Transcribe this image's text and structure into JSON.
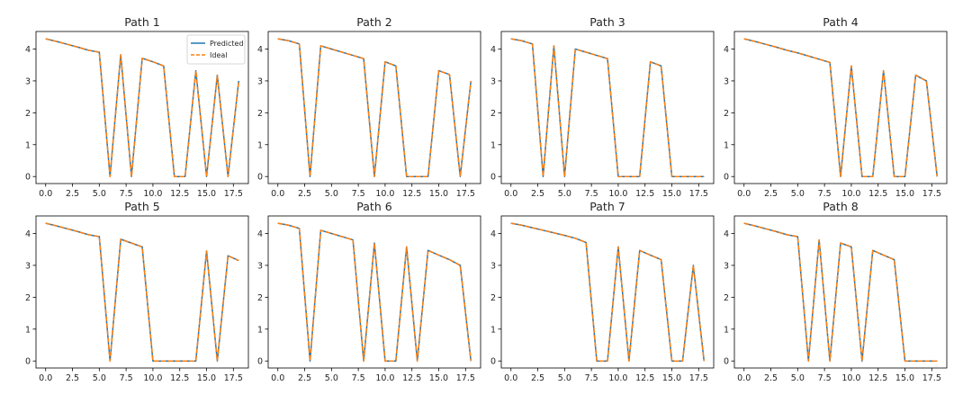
{
  "figure": {
    "background": "#ffffff"
  },
  "colors": {
    "predicted": "#1f77b4",
    "ideal": "#ff7f0e",
    "axis": "#000000",
    "text": "#262626"
  },
  "chart_data": [
    {
      "type": "line",
      "title": "Path 1",
      "xlim": [
        -0.9,
        18.9
      ],
      "ylim": [
        -0.22,
        4.55
      ],
      "xticks": [
        0,
        2.5,
        5,
        7.5,
        10,
        12.5,
        15,
        17.5
      ],
      "xtick_labels": [
        "0.0",
        "2.5",
        "5.0",
        "7.5",
        "10.0",
        "12.5",
        "15.0",
        "17.5"
      ],
      "yticks": [
        0,
        1,
        2,
        3,
        4
      ],
      "ytick_labels": [
        "0",
        "1",
        "2",
        "3",
        "4"
      ],
      "grid": false,
      "legend": {
        "location": "upper right",
        "entries": [
          "Predicted",
          "Ideal"
        ]
      },
      "x": [
        0,
        1,
        2,
        3,
        4,
        5,
        6,
        7,
        8,
        9,
        10,
        11,
        12,
        13,
        14,
        15,
        16,
        17,
        18
      ],
      "series": [
        {
          "name": "Predicted",
          "style": "solid",
          "color": "#1f77b4",
          "values": [
            4.32,
            4.24,
            4.15,
            4.06,
            3.96,
            3.9,
            0,
            3.82,
            0,
            3.71,
            3.6,
            3.47,
            0,
            0,
            3.32,
            0,
            3.18,
            0,
            3.0
          ]
        },
        {
          "name": "Ideal",
          "style": "dashed",
          "color": "#ff7f0e",
          "values": [
            4.32,
            4.24,
            4.15,
            4.06,
            3.96,
            3.9,
            0,
            3.82,
            0,
            3.71,
            3.6,
            3.47,
            0,
            0,
            3.32,
            0,
            3.18,
            0,
            3.0
          ]
        }
      ]
    },
    {
      "type": "line",
      "title": "Path 2",
      "xlim": [
        -0.9,
        18.9
      ],
      "ylim": [
        -0.22,
        4.55
      ],
      "xticks": [
        0,
        2.5,
        5,
        7.5,
        10,
        12.5,
        15,
        17.5
      ],
      "xtick_labels": [
        "0.0",
        "2.5",
        "5.0",
        "7.5",
        "10.0",
        "12.5",
        "15.0",
        "17.5"
      ],
      "yticks": [
        0,
        1,
        2,
        3,
        4
      ],
      "ytick_labels": [
        "0",
        "1",
        "2",
        "3",
        "4"
      ],
      "grid": false,
      "x": [
        0,
        1,
        2,
        3,
        4,
        5,
        6,
        7,
        8,
        9,
        10,
        11,
        12,
        13,
        14,
        15,
        16,
        17,
        18
      ],
      "series": [
        {
          "style": "solid",
          "color": "#1f77b4",
          "values": [
            4.32,
            4.26,
            4.16,
            0,
            4.1,
            4.0,
            3.9,
            3.8,
            3.7,
            0,
            3.6,
            3.47,
            0,
            0,
            0,
            3.32,
            3.2,
            0,
            3.0
          ]
        },
        {
          "style": "dashed",
          "color": "#ff7f0e",
          "values": [
            4.32,
            4.26,
            4.16,
            0,
            4.1,
            4.0,
            3.9,
            3.8,
            3.7,
            0,
            3.6,
            3.47,
            0,
            0,
            0,
            3.32,
            3.2,
            0,
            3.0
          ]
        }
      ]
    },
    {
      "type": "line",
      "title": "Path 3",
      "xlim": [
        -0.9,
        18.9
      ],
      "ylim": [
        -0.22,
        4.55
      ],
      "xticks": [
        0,
        2.5,
        5,
        7.5,
        10,
        12.5,
        15,
        17.5
      ],
      "xtick_labels": [
        "0.0",
        "2.5",
        "5.0",
        "7.5",
        "10.0",
        "12.5",
        "15.0",
        "17.5"
      ],
      "yticks": [
        0,
        1,
        2,
        3,
        4
      ],
      "ytick_labels": [
        "0",
        "1",
        "2",
        "3",
        "4"
      ],
      "grid": false,
      "x": [
        0,
        1,
        2,
        3,
        4,
        5,
        6,
        7,
        8,
        9,
        10,
        11,
        12,
        13,
        14,
        15,
        16,
        17,
        18
      ],
      "series": [
        {
          "style": "solid",
          "color": "#1f77b4",
          "values": [
            4.32,
            4.26,
            4.16,
            0,
            4.1,
            0,
            4.0,
            3.9,
            3.8,
            3.7,
            0,
            0,
            0,
            3.6,
            3.47,
            0,
            0,
            0,
            0
          ]
        },
        {
          "style": "dashed",
          "color": "#ff7f0e",
          "values": [
            4.32,
            4.26,
            4.16,
            0,
            4.1,
            0,
            4.0,
            3.9,
            3.8,
            3.7,
            0,
            0,
            0,
            3.6,
            3.47,
            0,
            0,
            0,
            0
          ]
        }
      ]
    },
    {
      "type": "line",
      "title": "Path 4",
      "xlim": [
        -0.9,
        18.9
      ],
      "ylim": [
        -0.22,
        4.55
      ],
      "xticks": [
        0,
        2.5,
        5,
        7.5,
        10,
        12.5,
        15,
        17.5
      ],
      "xtick_labels": [
        "0.0",
        "2.5",
        "5.0",
        "7.5",
        "10.0",
        "12.5",
        "15.0",
        "17.5"
      ],
      "yticks": [
        0,
        1,
        2,
        3,
        4
      ],
      "ytick_labels": [
        "0",
        "1",
        "2",
        "3",
        "4"
      ],
      "grid": false,
      "x": [
        0,
        1,
        2,
        3,
        4,
        5,
        6,
        7,
        8,
        9,
        10,
        11,
        12,
        13,
        14,
        15,
        16,
        17,
        18
      ],
      "series": [
        {
          "style": "solid",
          "color": "#1f77b4",
          "values": [
            4.32,
            4.24,
            4.15,
            4.06,
            3.96,
            3.88,
            3.78,
            3.68,
            3.58,
            0,
            3.47,
            0,
            0,
            3.32,
            0,
            0,
            3.18,
            3.0,
            0
          ]
        },
        {
          "style": "dashed",
          "color": "#ff7f0e",
          "values": [
            4.32,
            4.24,
            4.15,
            4.06,
            3.96,
            3.88,
            3.78,
            3.68,
            3.58,
            0,
            3.47,
            0,
            0,
            3.32,
            0,
            0,
            3.18,
            3.0,
            0
          ]
        }
      ]
    },
    {
      "type": "line",
      "title": "Path 5",
      "xlim": [
        -0.9,
        18.9
      ],
      "ylim": [
        -0.22,
        4.55
      ],
      "xticks": [
        0,
        2.5,
        5,
        7.5,
        10,
        12.5,
        15,
        17.5
      ],
      "xtick_labels": [
        "0.0",
        "2.5",
        "5.0",
        "7.5",
        "10.0",
        "12.5",
        "15.0",
        "17.5"
      ],
      "yticks": [
        0,
        1,
        2,
        3,
        4
      ],
      "ytick_labels": [
        "0",
        "1",
        "2",
        "3",
        "4"
      ],
      "grid": false,
      "x": [
        0,
        1,
        2,
        3,
        4,
        5,
        6,
        7,
        8,
        9,
        10,
        11,
        12,
        13,
        14,
        15,
        16,
        17,
        18
      ],
      "series": [
        {
          "style": "solid",
          "color": "#1f77b4",
          "values": [
            4.32,
            4.24,
            4.15,
            4.06,
            3.96,
            3.9,
            0,
            3.82,
            3.7,
            3.58,
            0,
            0,
            0,
            0,
            0,
            3.45,
            0,
            3.3,
            3.15
          ]
        },
        {
          "style": "dashed",
          "color": "#ff7f0e",
          "values": [
            4.32,
            4.24,
            4.15,
            4.06,
            3.96,
            3.9,
            0,
            3.82,
            3.7,
            3.58,
            0,
            0,
            0,
            0,
            0,
            3.45,
            0,
            3.3,
            3.15
          ]
        }
      ]
    },
    {
      "type": "line",
      "title": "Path 6",
      "xlim": [
        -0.9,
        18.9
      ],
      "ylim": [
        -0.22,
        4.55
      ],
      "xticks": [
        0,
        2.5,
        5,
        7.5,
        10,
        12.5,
        15,
        17.5
      ],
      "xtick_labels": [
        "0.0",
        "2.5",
        "5.0",
        "7.5",
        "10.0",
        "12.5",
        "15.0",
        "17.5"
      ],
      "yticks": [
        0,
        1,
        2,
        3,
        4
      ],
      "ytick_labels": [
        "0",
        "1",
        "2",
        "3",
        "4"
      ],
      "grid": false,
      "x": [
        0,
        1,
        2,
        3,
        4,
        5,
        6,
        7,
        8,
        9,
        10,
        11,
        12,
        13,
        14,
        15,
        16,
        17,
        18
      ],
      "series": [
        {
          "style": "solid",
          "color": "#1f77b4",
          "values": [
            4.32,
            4.26,
            4.16,
            0,
            4.1,
            4.0,
            3.9,
            3.8,
            0,
            3.7,
            0,
            0,
            3.58,
            0,
            3.47,
            3.32,
            3.18,
            3.0,
            0
          ]
        },
        {
          "style": "dashed",
          "color": "#ff7f0e",
          "values": [
            4.32,
            4.26,
            4.16,
            0,
            4.1,
            4.0,
            3.9,
            3.8,
            0,
            3.7,
            0,
            0,
            3.58,
            0,
            3.47,
            3.32,
            3.18,
            3.0,
            0
          ]
        }
      ]
    },
    {
      "type": "line",
      "title": "Path 7",
      "xlim": [
        -0.9,
        18.9
      ],
      "ylim": [
        -0.22,
        4.55
      ],
      "xticks": [
        0,
        2.5,
        5,
        7.5,
        10,
        12.5,
        15,
        17.5
      ],
      "xtick_labels": [
        "0.0",
        "2.5",
        "5.0",
        "7.5",
        "10.0",
        "12.5",
        "15.0",
        "17.5"
      ],
      "yticks": [
        0,
        1,
        2,
        3,
        4
      ],
      "ytick_labels": [
        "0",
        "1",
        "2",
        "3",
        "4"
      ],
      "grid": false,
      "x": [
        0,
        1,
        2,
        3,
        4,
        5,
        6,
        7,
        8,
        9,
        10,
        11,
        12,
        13,
        14,
        15,
        16,
        17,
        18
      ],
      "series": [
        {
          "style": "solid",
          "color": "#1f77b4",
          "values": [
            4.32,
            4.26,
            4.18,
            4.1,
            4.02,
            3.94,
            3.85,
            3.72,
            0,
            0,
            3.58,
            0,
            3.47,
            3.32,
            3.18,
            0,
            0,
            3.0,
            0
          ]
        },
        {
          "style": "dashed",
          "color": "#ff7f0e",
          "values": [
            4.32,
            4.26,
            4.18,
            4.1,
            4.02,
            3.94,
            3.85,
            3.72,
            0,
            0,
            3.58,
            0,
            3.47,
            3.32,
            3.18,
            0,
            0,
            3.0,
            0
          ]
        }
      ]
    },
    {
      "type": "line",
      "title": "Path 8",
      "xlim": [
        -0.9,
        18.9
      ],
      "ylim": [
        -0.22,
        4.55
      ],
      "xticks": [
        0,
        2.5,
        5,
        7.5,
        10,
        12.5,
        15,
        17.5
      ],
      "xtick_labels": [
        "0.0",
        "2.5",
        "5.0",
        "7.5",
        "10.0",
        "12.5",
        "15.0",
        "17.5"
      ],
      "yticks": [
        0,
        1,
        2,
        3,
        4
      ],
      "ytick_labels": [
        "0",
        "1",
        "2",
        "3",
        "4"
      ],
      "grid": false,
      "x": [
        0,
        1,
        2,
        3,
        4,
        5,
        6,
        7,
        8,
        9,
        10,
        11,
        12,
        13,
        14,
        15,
        16,
        17,
        18
      ],
      "series": [
        {
          "style": "solid",
          "color": "#1f77b4",
          "values": [
            4.32,
            4.24,
            4.15,
            4.06,
            3.96,
            3.9,
            0,
            3.8,
            0,
            3.7,
            3.58,
            0,
            3.47,
            3.32,
            3.18,
            0,
            0,
            0,
            0
          ]
        },
        {
          "style": "dashed",
          "color": "#ff7f0e",
          "values": [
            4.32,
            4.24,
            4.15,
            4.06,
            3.96,
            3.9,
            0,
            3.8,
            0,
            3.7,
            3.58,
            0,
            3.47,
            3.32,
            3.18,
            0,
            0,
            0,
            0
          ]
        }
      ]
    }
  ]
}
